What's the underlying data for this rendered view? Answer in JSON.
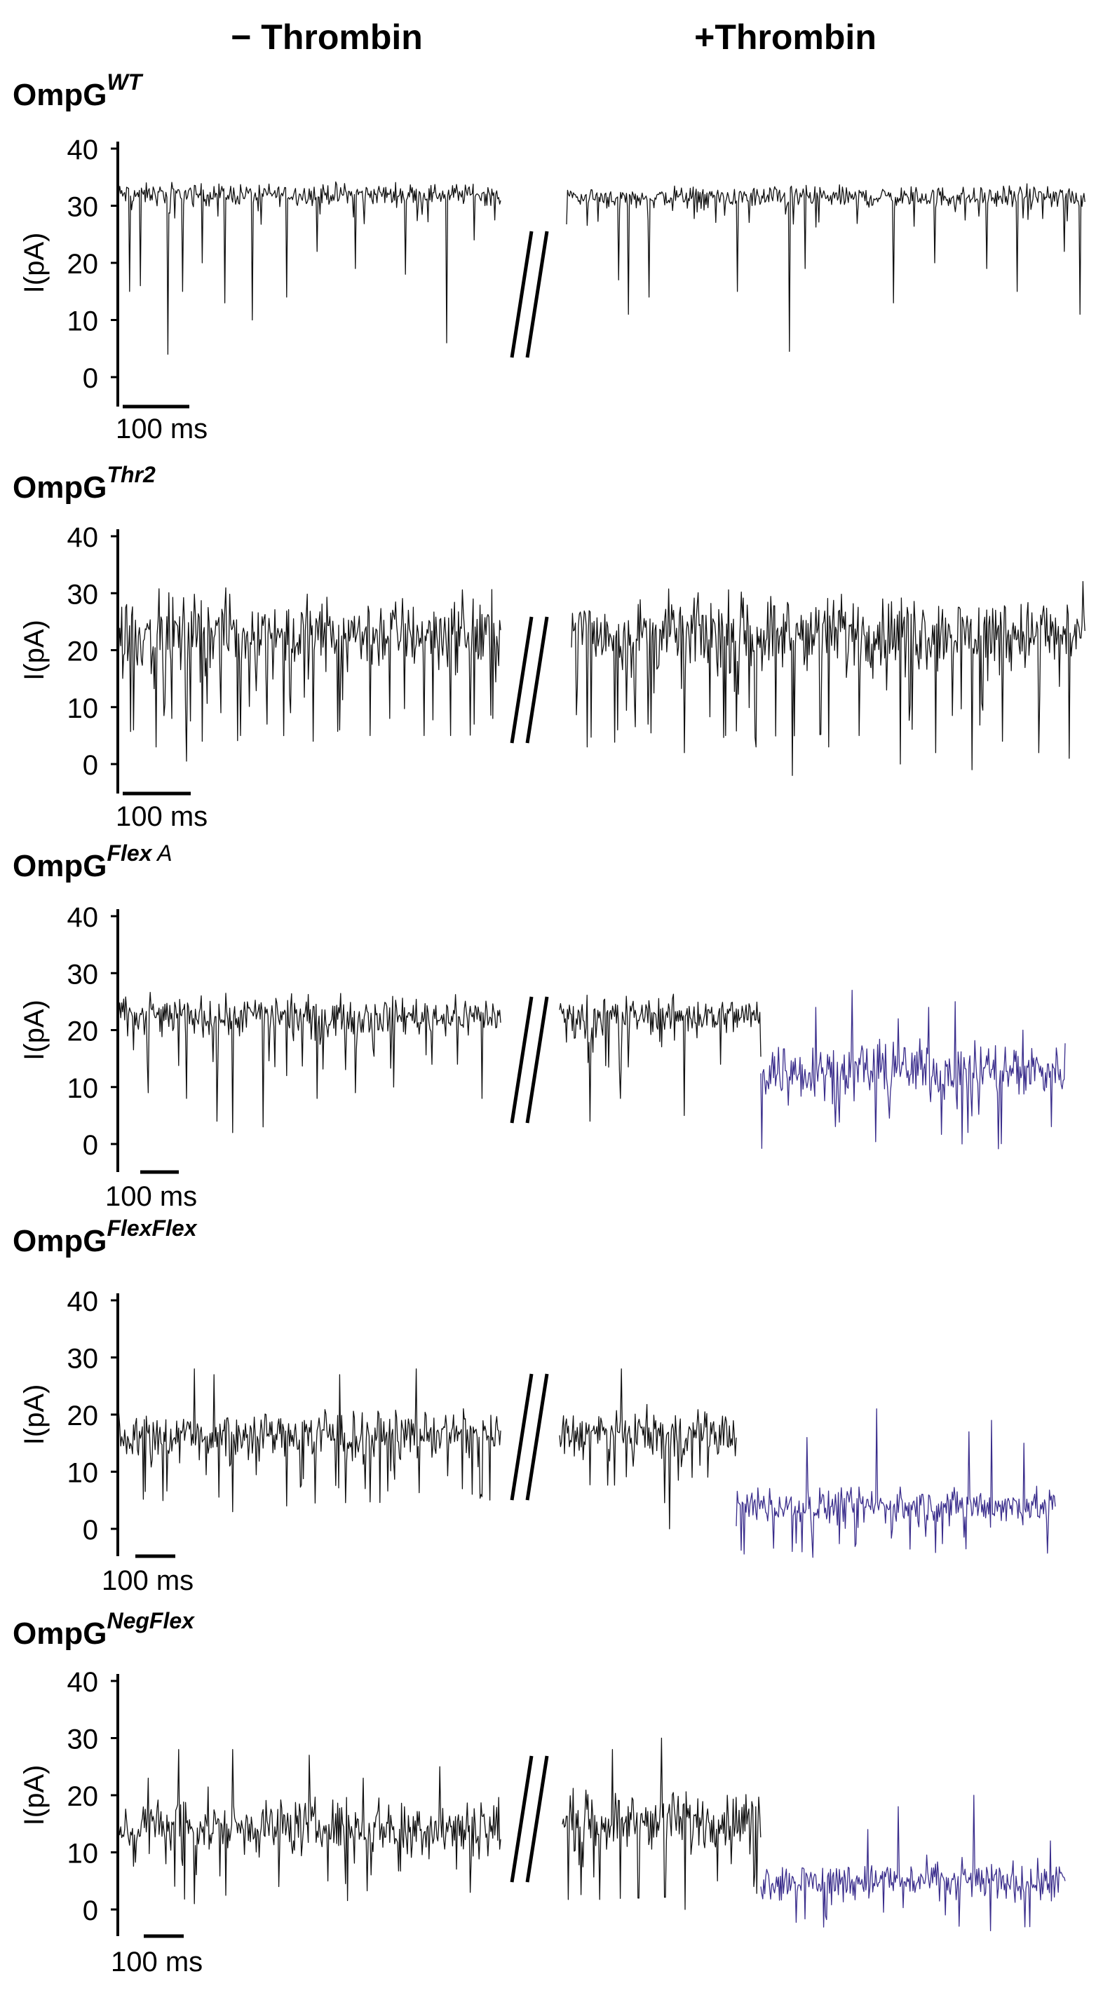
{
  "header": {
    "minus_label": "− Thrombin",
    "plus_label": "+Thrombin"
  },
  "colors": {
    "trace": "#111111",
    "trace_cleaved": "#3a2d8c",
    "axis": "#000000"
  },
  "chart_data": [
    {
      "type": "line",
      "name": "OmpG",
      "superscript": "WT",
      "superscript_bold": true,
      "ylabel": "I(pA)",
      "yticks": [
        "0",
        "10",
        "20",
        "30",
        "40"
      ],
      "ylim": [
        0,
        40
      ],
      "scalebar_label": "100 ms",
      "series": [
        {
          "segment": "minus",
          "level": 32,
          "noise": 0.9,
          "events": [
            [
              0.0,
              11
            ],
            [
              0.03,
              15
            ],
            [
              0.06,
              16
            ],
            [
              0.13,
              4
            ],
            [
              0.17,
              15
            ],
            [
              0.22,
              20
            ],
            [
              0.28,
              13
            ],
            [
              0.35,
              10
            ],
            [
              0.44,
              14
            ],
            [
              0.52,
              22
            ],
            [
              0.62,
              19
            ],
            [
              0.75,
              18
            ],
            [
              0.86,
              6
            ],
            [
              0.93,
              24
            ]
          ],
          "color": "trace"
        },
        {
          "segment": "plus",
          "level": 31.5,
          "noise": 0.9,
          "events": [
            [
              0.1,
              17
            ],
            [
              0.12,
              11
            ],
            [
              0.16,
              14
            ],
            [
              0.33,
              15
            ],
            [
              0.43,
              4.5
            ],
            [
              0.46,
              19
            ],
            [
              0.63,
              13
            ],
            [
              0.71,
              20
            ],
            [
              0.81,
              19
            ],
            [
              0.87,
              15
            ],
            [
              0.96,
              22
            ],
            [
              0.99,
              11
            ]
          ],
          "color": "trace"
        }
      ]
    },
    {
      "type": "line",
      "name": "OmpG",
      "superscript": "Thr2",
      "superscript_bold": true,
      "ylabel": "I(pA)",
      "yticks": [
        "0",
        "10",
        "20",
        "30",
        "40"
      ],
      "ylim": [
        -3,
        40
      ],
      "scalebar_label": "100 ms",
      "series": [
        {
          "segment": "minus",
          "level": 23,
          "noise": 3.2,
          "events": [
            [
              0.04,
              6
            ],
            [
              0.1,
              3
            ],
            [
              0.14,
              8
            ],
            [
              0.18,
              0.5
            ],
            [
              0.22,
              4
            ],
            [
              0.27,
              9
            ],
            [
              0.32,
              5
            ],
            [
              0.39,
              7
            ],
            [
              0.45,
              9
            ],
            [
              0.51,
              4
            ],
            [
              0.58,
              6
            ],
            [
              0.66,
              5
            ],
            [
              0.71,
              8
            ],
            [
              0.8,
              5
            ],
            [
              0.87,
              5
            ],
            [
              0.93,
              7
            ],
            [
              0.98,
              8
            ]
          ],
          "color": "trace"
        },
        {
          "segment": "plus",
          "level": 23,
          "noise": 3.2,
          "events": [
            [
              0.03,
              3
            ],
            [
              0.09,
              6
            ],
            [
              0.15,
              7
            ],
            [
              0.22,
              2
            ],
            [
              0.3,
              5
            ],
            [
              0.36,
              3
            ],
            [
              0.43,
              -2
            ],
            [
              0.5,
              3
            ],
            [
              0.56,
              5
            ],
            [
              0.64,
              0
            ],
            [
              0.71,
              2
            ],
            [
              0.78,
              -1
            ],
            [
              0.84,
              4
            ],
            [
              0.91,
              2
            ],
            [
              0.97,
              1
            ]
          ],
          "color": "trace"
        }
      ]
    },
    {
      "type": "line",
      "name": "OmpG",
      "superscript": "Flex",
      "superscript2": "A",
      "superscript_bold": true,
      "ylabel": "I(pA)",
      "yticks": [
        "0",
        "10",
        "20",
        "30",
        "40"
      ],
      "ylim": [
        0,
        40
      ],
      "scalebar_label": "100 ms",
      "series": [
        {
          "segment": "minus",
          "level": 22.5,
          "noise": 1.6,
          "events": [
            [
              0.08,
              9
            ],
            [
              0.18,
              8
            ],
            [
              0.26,
              4
            ],
            [
              0.3,
              2
            ],
            [
              0.38,
              3
            ],
            [
              0.44,
              12
            ],
            [
              0.52,
              8
            ],
            [
              0.62,
              9
            ],
            [
              0.72,
              10
            ],
            [
              0.82,
              14
            ],
            [
              0.95,
              8
            ]
          ],
          "color": "trace"
        },
        {
          "segment": "plus",
          "level": 22.5,
          "noise": 1.6,
          "events": [
            [
              0.15,
              4
            ],
            [
              0.3,
              8
            ],
            [
              0.62,
              5
            ],
            [
              0.8,
              14
            ]
          ],
          "color": "trace"
        },
        {
          "segment": "cleaved",
          "level": 13,
          "noise": 2.4,
          "events": [
            [
              0.18,
              24
            ],
            [
              0.3,
              27
            ],
            [
              0.45,
              22
            ],
            [
              0.55,
              24
            ],
            [
              0.64,
              25
            ],
            [
              0.66,
              0
            ],
            [
              0.86,
              20
            ]
          ],
          "color": "trace_cleaved"
        }
      ]
    },
    {
      "type": "line",
      "name": "OmpG",
      "superscript": "FlexFlex",
      "superscript_bold": true,
      "ylabel": "I(pA)",
      "yticks": [
        "0",
        "10",
        "20",
        "30",
        "40"
      ],
      "ylim": [
        0,
        40
      ],
      "scalebar_label": "100 ms",
      "series": [
        {
          "segment": "minus",
          "level": 16.5,
          "noise": 2.0,
          "events": [
            [
              0.2,
              28
            ],
            [
              0.25,
              27
            ],
            [
              0.3,
              3
            ],
            [
              0.44,
              4
            ],
            [
              0.58,
              27
            ],
            [
              0.78,
              28
            ],
            [
              0.9,
              7
            ]
          ],
          "color": "trace"
        },
        {
          "segment": "plus",
          "level": 16.5,
          "noise": 2.0,
          "events": [
            [
              0.35,
              28
            ],
            [
              0.62,
              0
            ],
            [
              0.75,
              9
            ]
          ],
          "color": "trace"
        },
        {
          "segment": "cleaved",
          "level": 4,
          "noise": 1.5,
          "events": [
            [
              0.22,
              16
            ],
            [
              0.44,
              21
            ],
            [
              0.73,
              17
            ],
            [
              0.8,
              19
            ],
            [
              0.9,
              15
            ]
          ],
          "color": "trace_cleaved"
        }
      ]
    },
    {
      "type": "line",
      "name": "OmpG",
      "superscript": "NegFlex",
      "superscript_bold": true,
      "ylabel": "I(pA)",
      "yticks": [
        "0",
        "10",
        "20",
        "30",
        "40"
      ],
      "ylim": [
        0,
        40
      ],
      "scalebar_label": "100 ms",
      "series": [
        {
          "segment": "minus",
          "level": 14.5,
          "noise": 2.4,
          "events": [
            [
              0.08,
              23
            ],
            [
              0.16,
              28
            ],
            [
              0.2,
              1
            ],
            [
              0.3,
              28
            ],
            [
              0.42,
              4
            ],
            [
              0.5,
              27
            ],
            [
              0.64,
              23
            ],
            [
              0.84,
              25
            ],
            [
              0.92,
              3
            ]
          ],
          "color": "trace"
        },
        {
          "segment": "plus",
          "level": 15.5,
          "noise": 2.4,
          "events": [
            [
              0.25,
              28
            ],
            [
              0.38,
              2
            ],
            [
              0.5,
              30
            ],
            [
              0.62,
              0
            ],
            [
              0.78,
              5
            ]
          ],
          "color": "trace"
        },
        {
          "segment": "cleaved",
          "level": 5,
          "noise": 1.6,
          "events": [
            [
              0.35,
              14
            ],
            [
              0.45,
              18
            ],
            [
              0.7,
              20
            ],
            [
              0.95,
              12
            ]
          ],
          "color": "trace_cleaved"
        }
      ]
    }
  ]
}
